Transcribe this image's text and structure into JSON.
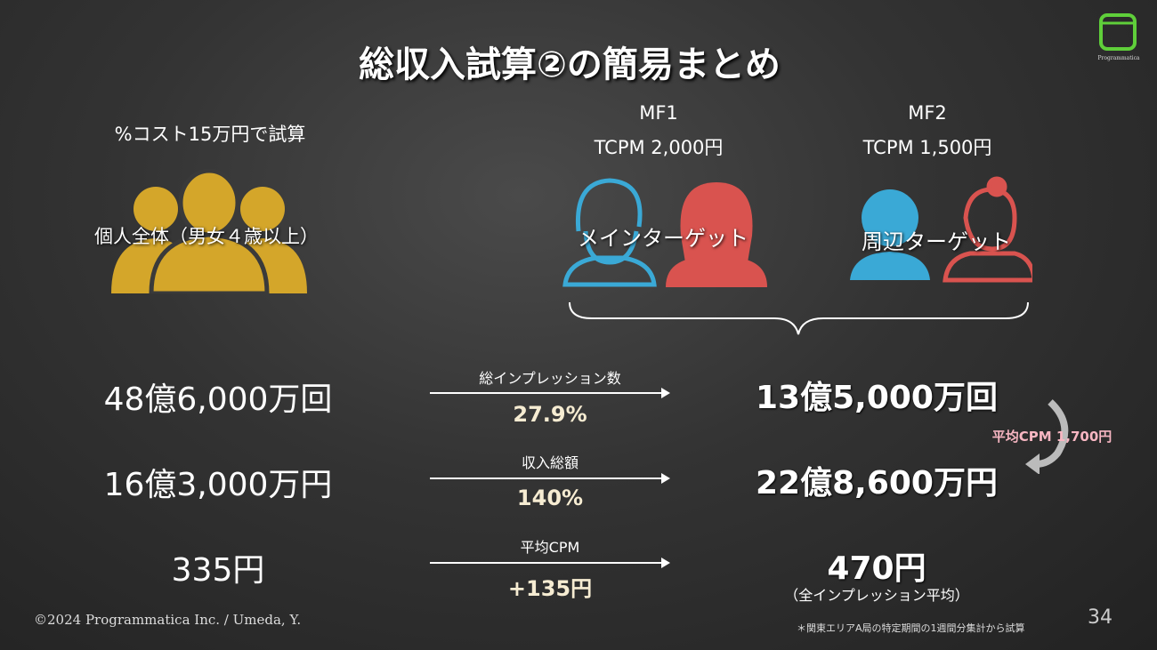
{
  "title": "総収入試算②の簡易まとめ",
  "logo": {
    "text": "Programmatica",
    "color": "#5fcf3a"
  },
  "left": {
    "cost_note": "%コスト15万円で試算",
    "segment": "個人全体（男女４歳以上）",
    "icon_color": "#d4a62a"
  },
  "mf1": {
    "name": "MF1",
    "tcpm": "TCPM 2,000円",
    "target": "メインターゲット"
  },
  "mf2": {
    "name": "MF2",
    "tcpm": "TCPM 1,500円",
    "target": "周辺ターゲット"
  },
  "colors": {
    "male": "#3aa9d6",
    "female": "#d9534f"
  },
  "rows": [
    {
      "left": "48億6,000万回",
      "label": "総インプレッション数",
      "change": "27.9%",
      "right": "13億5,000万回"
    },
    {
      "left": "16億3,000万円",
      "label": "収入総額",
      "change": "140%",
      "right": "22億8,600万円"
    },
    {
      "left": "335円",
      "label": "平均CPM",
      "change": "+135円",
      "right": "470円",
      "right_note": "（全インプレッション平均）"
    }
  ],
  "avg_cpm_note": "平均CPM 1,700円",
  "footer": {
    "copyright": "©2024  Programmatica Inc. / Umeda, Y.",
    "note": "＊関東エリアA局の特定期間の1週間分集計から試算",
    "page": "34"
  }
}
